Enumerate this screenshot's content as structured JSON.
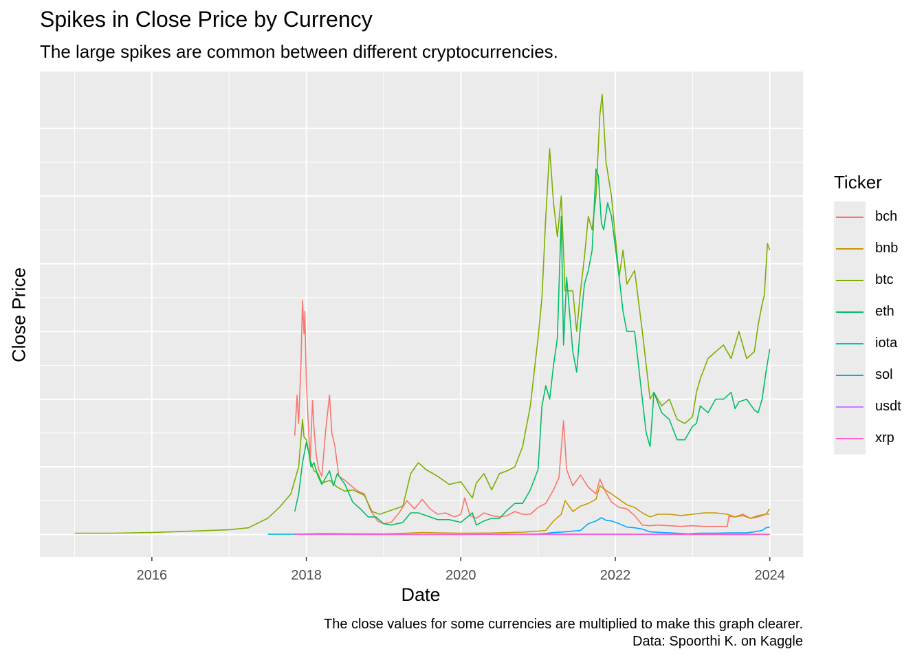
{
  "chart_data": {
    "type": "line",
    "title": "Spikes in Close Price by Currency",
    "subtitle": "The large spikes are common between different cryptocurrencies.",
    "xlabel": "Date",
    "ylabel": "Close Price",
    "caption": [
      "The close values for some currencies are multiplied to make this graph clearer.",
      "Data: Spoorthi K. on Kaggle"
    ],
    "legend_title": "Ticker",
    "legend_position": "right",
    "grid": true,
    "y_tick_labels_shown": false,
    "xlim": [
      2014.55,
      2024.43
    ],
    "ylim": [
      -1.65,
      34.2
    ],
    "x_ticks": [
      2016,
      2018,
      2020,
      2022,
      2024
    ],
    "x_tick_labels": [
      "2016",
      "2018",
      "2020",
      "2022",
      "2024"
    ],
    "y_ticks": [
      0,
      5,
      10,
      15,
      20,
      25,
      30
    ],
    "series": [
      {
        "name": "bch",
        "color": "#F8766D",
        "x": [
          2017.85,
          2017.88,
          2017.9,
          2017.93,
          2017.95,
          2017.97,
          2017.98,
          2018.0,
          2018.02,
          2018.05,
          2018.08,
          2018.1,
          2018.13,
          2018.16,
          2018.2,
          2018.25,
          2018.3,
          2018.33,
          2018.37,
          2018.42,
          2018.5,
          2018.58,
          2018.67,
          2018.75,
          2018.83,
          2018.92,
          2019.0,
          2019.1,
          2019.2,
          2019.3,
          2019.4,
          2019.5,
          2019.6,
          2019.7,
          2019.8,
          2019.92,
          2020.0,
          2020.05,
          2020.12,
          2020.2,
          2020.3,
          2020.4,
          2020.5,
          2020.6,
          2020.7,
          2020.8,
          2020.9,
          2021.0,
          2021.1,
          2021.2,
          2021.27,
          2021.33,
          2021.37,
          2021.45,
          2021.55,
          2021.65,
          2021.75,
          2021.8,
          2021.87,
          2021.95,
          2022.05,
          2022.15,
          2022.25,
          2022.35,
          2022.45,
          2022.55,
          2022.7,
          2022.85,
          2023.0,
          2023.15,
          2023.3,
          2023.45,
          2023.47,
          2023.55,
          2023.65,
          2023.75,
          2023.85,
          2023.95,
          2024.0
        ],
        "values": [
          7.3,
          10.3,
          8.2,
          12.5,
          17.3,
          14.8,
          16.5,
          11.2,
          8.8,
          5.5,
          9.9,
          7.8,
          5.8,
          4.8,
          4.3,
          7.7,
          10.3,
          7.5,
          6.5,
          4.3,
          4.0,
          3.6,
          3.2,
          3.0,
          1.8,
          1.0,
          0.8,
          0.9,
          1.6,
          2.5,
          1.9,
          2.6,
          1.9,
          1.5,
          1.6,
          1.3,
          1.5,
          2.7,
          1.4,
          1.2,
          1.6,
          1.4,
          1.3,
          1.4,
          1.7,
          1.5,
          1.5,
          2.0,
          2.3,
          3.3,
          4.2,
          8.4,
          4.8,
          3.6,
          4.4,
          3.5,
          3.0,
          4.1,
          3.2,
          2.4,
          2.0,
          1.9,
          1.4,
          0.7,
          0.65,
          0.7,
          0.65,
          0.6,
          0.65,
          0.6,
          0.6,
          0.6,
          1.35,
          1.3,
          1.5,
          1.2,
          1.3,
          1.5,
          1.5
        ]
      },
      {
        "name": "bnb",
        "color": "#C49A00",
        "x": [
          2017.85,
          2018.2,
          2018.6,
          2019.0,
          2019.3,
          2019.5,
          2019.7,
          2020.0,
          2020.4,
          2020.8,
          2021.0,
          2021.1,
          2021.2,
          2021.3,
          2021.35,
          2021.45,
          2021.55,
          2021.65,
          2021.75,
          2021.8,
          2021.87,
          2021.95,
          2022.05,
          2022.15,
          2022.25,
          2022.35,
          2022.45,
          2022.55,
          2022.7,
          2022.85,
          2023.0,
          2023.15,
          2023.3,
          2023.45,
          2023.55,
          2023.65,
          2023.75,
          2023.85,
          2023.95,
          2024.0
        ],
        "values": [
          0.03,
          0.08,
          0.06,
          0.05,
          0.1,
          0.15,
          0.12,
          0.1,
          0.11,
          0.18,
          0.25,
          0.3,
          1.0,
          1.5,
          2.5,
          1.7,
          2.1,
          2.3,
          2.6,
          3.6,
          3.3,
          3.0,
          2.6,
          2.2,
          2.0,
          1.6,
          1.3,
          1.5,
          1.5,
          1.4,
          1.5,
          1.6,
          1.6,
          1.5,
          1.3,
          1.4,
          1.2,
          1.4,
          1.5,
          1.9
        ]
      },
      {
        "name": "btc",
        "color": "#7CAE00",
        "x": [
          2015.0,
          2015.5,
          2016.0,
          2016.5,
          2017.0,
          2017.25,
          2017.5,
          2017.65,
          2017.8,
          2017.9,
          2017.95,
          2017.97,
          2018.0,
          2018.05,
          2018.1,
          2018.15,
          2018.2,
          2018.3,
          2018.4,
          2018.5,
          2018.6,
          2018.75,
          2018.85,
          2018.95,
          2019.1,
          2019.25,
          2019.35,
          2019.45,
          2019.55,
          2019.7,
          2019.85,
          2020.0,
          2020.15,
          2020.2,
          2020.3,
          2020.4,
          2020.5,
          2020.6,
          2020.7,
          2020.8,
          2020.9,
          2021.0,
          2021.05,
          2021.1,
          2021.15,
          2021.2,
          2021.25,
          2021.3,
          2021.35,
          2021.45,
          2021.5,
          2021.55,
          2021.6,
          2021.65,
          2021.7,
          2021.75,
          2021.8,
          2021.83,
          2021.88,
          2021.95,
          2022.05,
          2022.1,
          2022.15,
          2022.25,
          2022.35,
          2022.45,
          2022.5,
          2022.6,
          2022.7,
          2022.8,
          2022.9,
          2023.0,
          2023.05,
          2023.1,
          2023.2,
          2023.3,
          2023.4,
          2023.5,
          2023.55,
          2023.6,
          2023.7,
          2023.8,
          2023.85,
          2023.9,
          2023.93,
          2023.97,
          2024.0
        ],
        "values": [
          0.1,
          0.1,
          0.15,
          0.25,
          0.35,
          0.5,
          1.2,
          2.0,
          3.0,
          5.0,
          8.5,
          7.2,
          7.0,
          5.5,
          4.7,
          4.5,
          3.8,
          4.0,
          3.5,
          3.2,
          3.3,
          2.9,
          1.7,
          1.5,
          1.8,
          2.1,
          4.5,
          5.3,
          4.8,
          4.3,
          3.7,
          3.9,
          2.7,
          3.8,
          4.5,
          3.3,
          4.5,
          4.7,
          5.0,
          6.5,
          9.5,
          14.5,
          17.5,
          23.5,
          28.5,
          24.5,
          22.0,
          25.0,
          18.0,
          18.0,
          15.0,
          18.0,
          20.5,
          23.5,
          22.5,
          25.0,
          31.0,
          32.5,
          27.5,
          25.0,
          19.0,
          21.0,
          18.5,
          19.5,
          15.0,
          10.0,
          10.5,
          9.5,
          10.0,
          8.5,
          8.2,
          8.7,
          10.5,
          11.5,
          13.0,
          13.5,
          14.0,
          13.0,
          14.0,
          15.0,
          13.0,
          13.5,
          15.5,
          17.0,
          17.7,
          21.5,
          21.0
        ]
      },
      {
        "name": "eth",
        "color": "#00BE67",
        "x": [
          2017.85,
          2017.9,
          2017.95,
          2018.0,
          2018.03,
          2018.06,
          2018.1,
          2018.15,
          2018.2,
          2018.3,
          2018.35,
          2018.4,
          2018.5,
          2018.6,
          2018.7,
          2018.8,
          2018.9,
          2019.0,
          2019.1,
          2019.25,
          2019.35,
          2019.45,
          2019.55,
          2019.7,
          2019.85,
          2020.0,
          2020.15,
          2020.2,
          2020.3,
          2020.4,
          2020.5,
          2020.6,
          2020.7,
          2020.8,
          2020.9,
          2021.0,
          2021.05,
          2021.1,
          2021.15,
          2021.2,
          2021.25,
          2021.3,
          2021.33,
          2021.37,
          2021.45,
          2021.5,
          2021.55,
          2021.6,
          2021.65,
          2021.7,
          2021.75,
          2021.78,
          2021.82,
          2021.85,
          2021.9,
          2021.95,
          2022.05,
          2022.1,
          2022.15,
          2022.25,
          2022.35,
          2022.4,
          2022.45,
          2022.5,
          2022.6,
          2022.7,
          2022.8,
          2022.9,
          2023.0,
          2023.05,
          2023.1,
          2023.2,
          2023.3,
          2023.4,
          2023.5,
          2023.55,
          2023.6,
          2023.7,
          2023.8,
          2023.85,
          2023.9,
          2023.95,
          2024.0
        ],
        "values": [
          1.7,
          3.0,
          5.3,
          6.8,
          6.1,
          5.0,
          5.3,
          4.3,
          3.7,
          4.7,
          3.6,
          4.5,
          3.7,
          2.4,
          1.9,
          1.3,
          1.3,
          0.8,
          0.7,
          0.9,
          1.6,
          1.6,
          1.4,
          1.1,
          1.1,
          0.9,
          1.6,
          0.7,
          1.0,
          1.2,
          1.2,
          1.8,
          2.3,
          2.3,
          3.3,
          4.8,
          9.5,
          11.0,
          10.0,
          12.5,
          14.5,
          23.5,
          14.0,
          19.0,
          13.5,
          12.0,
          15.5,
          18.5,
          19.5,
          21.0,
          27.0,
          26.5,
          23.0,
          22.5,
          24.5,
          23.5,
          19.0,
          16.5,
          15.0,
          15.0,
          10.0,
          7.5,
          6.5,
          10.5,
          9.0,
          8.5,
          7.0,
          7.0,
          8.0,
          8.2,
          9.5,
          9.0,
          10.0,
          10.0,
          10.5,
          9.3,
          9.8,
          10.0,
          9.2,
          9.0,
          10.0,
          12.0,
          13.7
        ]
      },
      {
        "name": "iota",
        "color": "#00BFC4",
        "x": [
          2017.5,
          2018.0,
          2019.0,
          2020.0,
          2021.0,
          2022.0,
          2023.0,
          2024.0
        ],
        "values": [
          0.02,
          0.03,
          0.01,
          0.01,
          0.02,
          0.02,
          0.01,
          0.01
        ]
      },
      {
        "name": "sol",
        "color": "#00A9FF",
        "x": [
          2020.4,
          2020.8,
          2021.0,
          2021.1,
          2021.2,
          2021.35,
          2021.45,
          2021.55,
          2021.65,
          2021.75,
          2021.82,
          2021.88,
          2021.95,
          2022.05,
          2022.15,
          2022.25,
          2022.35,
          2022.45,
          2022.6,
          2022.8,
          2022.95,
          2023.1,
          2023.3,
          2023.5,
          2023.7,
          2023.8,
          2023.9,
          2023.95,
          2024.0
        ],
        "values": [
          0.01,
          0.02,
          0.05,
          0.08,
          0.15,
          0.2,
          0.25,
          0.3,
          0.8,
          1.0,
          1.25,
          1.05,
          1.0,
          0.8,
          0.55,
          0.5,
          0.4,
          0.2,
          0.15,
          0.1,
          0.05,
          0.1,
          0.1,
          0.12,
          0.12,
          0.2,
          0.3,
          0.5,
          0.55
        ]
      },
      {
        "name": "usdt",
        "color": "#C77CFF",
        "x": [
          2017.85,
          2024.0
        ],
        "values": [
          0.0,
          0.0
        ]
      },
      {
        "name": "xrp",
        "color": "#FF61CC",
        "x": [
          2017.85,
          2018.0,
          2019.0,
          2020.0,
          2021.0,
          2022.0,
          2023.0,
          2024.0
        ],
        "values": [
          0.01,
          0.04,
          0.02,
          0.01,
          0.03,
          0.03,
          0.02,
          0.02
        ]
      }
    ]
  }
}
